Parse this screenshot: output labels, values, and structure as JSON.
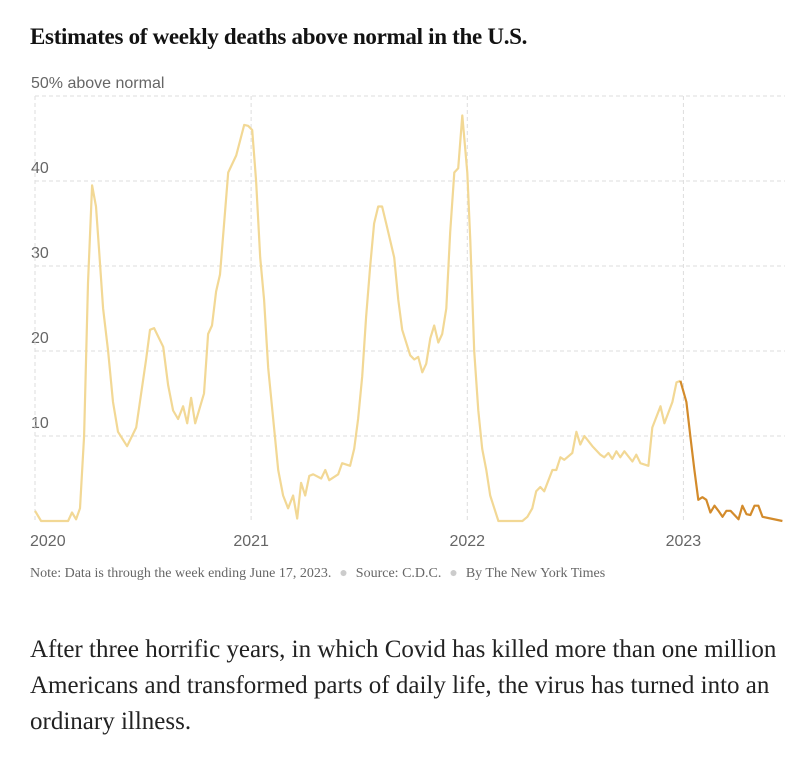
{
  "chart_data": {
    "type": "line",
    "title": "Estimates of weekly deaths above normal in the U.S.",
    "xlim": [
      2020,
      2023.47
    ],
    "xticks": [
      2020,
      2021,
      2022,
      2023
    ],
    "ylim": [
      0,
      50
    ],
    "yticks": [
      10,
      20,
      30,
      40,
      {
        "value": 50,
        "label": "50% above normal"
      }
    ],
    "grid": true,
    "series": [
      {
        "color": "#f2d895",
        "x": [
          2020.0,
          2020.028,
          2020.153,
          2020.171,
          2020.19,
          2020.208,
          2020.227,
          2020.245,
          2020.264,
          2020.282,
          2020.296,
          2020.315,
          2020.338,
          2020.361,
          2020.384,
          2020.426,
          2020.468,
          2020.514,
          2020.532,
          2020.551,
          2020.593,
          2020.616,
          2020.639,
          2020.662,
          2020.685,
          2020.704,
          2020.722,
          2020.741,
          2020.782,
          2020.801,
          2020.819,
          2020.838,
          2020.856,
          2020.875,
          2020.894,
          2020.931,
          2020.968,
          2020.986,
          2021.005,
          2021.023,
          2021.042,
          2021.06,
          2021.079,
          2021.102,
          2021.125,
          2021.148,
          2021.171,
          2021.194,
          2021.213,
          2021.231,
          2021.25,
          2021.269,
          2021.287,
          2021.324,
          2021.343,
          2021.361,
          2021.403,
          2021.421,
          2021.458,
          2021.477,
          2021.495,
          2021.514,
          2021.532,
          2021.551,
          2021.569,
          2021.588,
          2021.606,
          2021.625,
          2021.662,
          2021.681,
          2021.699,
          2021.736,
          2021.755,
          2021.773,
          2021.792,
          2021.81,
          2021.829,
          2021.847,
          2021.866,
          2021.884,
          2021.903,
          2021.921,
          2021.94,
          2021.958,
          2021.977,
          2022.0,
          2022.014,
          2022.032,
          2022.051,
          2022.069,
          2022.088,
          2022.106,
          2022.125,
          2022.144,
          2022.255,
          2022.278,
          2022.301,
          2022.319,
          2022.338,
          2022.356,
          2022.394,
          2022.412,
          2022.431,
          2022.449,
          2022.486,
          2022.505,
          2022.523,
          2022.542,
          2022.579,
          2022.616,
          2022.634,
          2022.653,
          2022.671,
          2022.69,
          2022.708,
          2022.727,
          2022.764,
          2022.782,
          2022.801,
          2022.838,
          2022.856,
          2022.894,
          2022.912,
          2022.949,
          2022.968,
          2022.986
        ],
        "values": [
          1.2,
          0,
          0,
          1,
          0.2,
          1.5,
          10,
          28,
          39.5,
          37,
          32,
          25,
          20,
          14,
          10.5,
          8.8,
          11,
          19,
          22.5,
          22.7,
          20.5,
          16,
          13,
          12,
          13.5,
          11.5,
          14.5,
          11.5,
          15,
          22,
          23,
          27,
          29,
          35,
          41,
          43,
          46.6,
          46.5,
          46,
          40,
          31,
          26,
          18,
          12,
          6,
          3,
          1.5,
          3,
          0.3,
          4.5,
          3,
          5.3,
          5.5,
          5,
          6,
          4.8,
          5.5,
          6.8,
          6.5,
          8.5,
          12,
          17,
          24,
          30,
          35,
          37,
          37,
          35,
          31,
          26,
          22.5,
          19.5,
          19,
          19.3,
          17.5,
          18.5,
          21.5,
          23,
          21,
          22,
          25,
          34,
          41,
          41.5,
          47.7,
          41,
          33,
          20,
          13,
          8.5,
          6,
          3,
          1.5,
          0,
          0,
          0.5,
          1.5,
          3.5,
          4,
          3.5,
          6,
          6,
          7.5,
          7.2,
          8,
          10.5,
          9,
          10,
          8.8,
          7.8,
          7.5,
          8,
          7.3,
          8.2,
          7.5,
          8.2,
          7,
          7.8,
          6.8,
          6.5,
          11,
          13.5,
          11.5,
          14,
          16.3,
          16.5
        ]
      },
      {
        "color": "#d38b2b",
        "x": [
          2022.986,
          2023.014,
          2023.032,
          2023.051,
          2023.069,
          2023.088,
          2023.106,
          2023.125,
          2023.144,
          2023.162,
          2023.181,
          2023.199,
          2023.218,
          2023.255,
          2023.273,
          2023.292,
          2023.31,
          2023.329,
          2023.347,
          2023.366,
          2023.403,
          2023.458
        ],
        "values": [
          16.5,
          14,
          10,
          6,
          2.5,
          2.8,
          2.5,
          1.0,
          1.8,
          1.2,
          0.5,
          1.2,
          1.2,
          0.2,
          1.8,
          0.8,
          0.7,
          1.8,
          1.8,
          0.5,
          0.3,
          0
        ]
      }
    ],
    "note": "Note: Data is through the week ending June 17, 2023.",
    "source": "Source: C.D.C.",
    "byline": "By The New York Times"
  },
  "paragraph": "After three horrific years, in which Covid has killed more than one million Americans and transformed parts of daily life, the virus has turned into an ordinary illness."
}
